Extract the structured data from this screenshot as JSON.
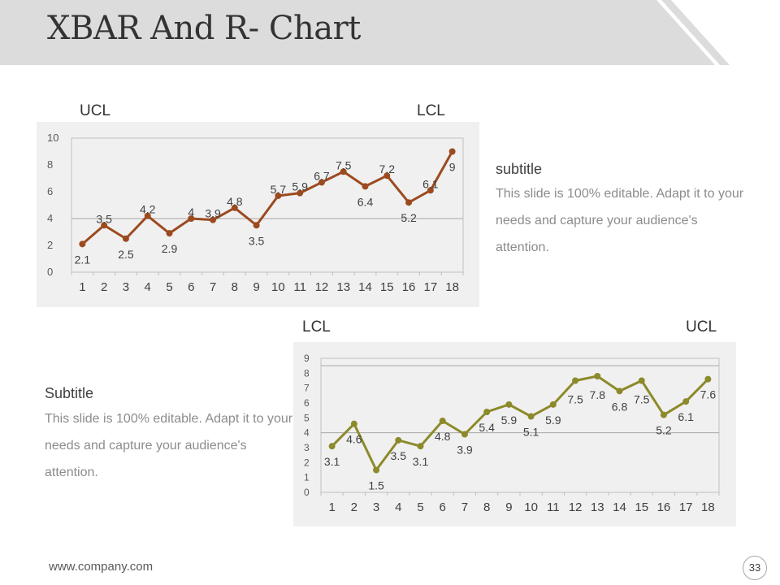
{
  "header": {
    "title": "XBAR And R- Chart"
  },
  "chart1": {
    "limit_left": "UCL",
    "limit_right": "LCL",
    "subtitle": "subtitle",
    "body": "This slide is 100% editable. Adapt it to your needs and capture your audience's attention."
  },
  "chart2": {
    "limit_left": "LCL",
    "limit_right": "UCL",
    "subtitle": "Subtitle",
    "body": "This slide is 100% editable. Adapt it to your needs and capture your audience's attention."
  },
  "footer": {
    "url": "www.company.com",
    "page": "33"
  },
  "chart_data": [
    {
      "type": "line",
      "categories": [
        "1",
        "2",
        "3",
        "4",
        "5",
        "6",
        "7",
        "8",
        "9",
        "10",
        "11",
        "12",
        "13",
        "14",
        "15",
        "16",
        "17",
        "18"
      ],
      "values": [
        2.1,
        3.5,
        2.5,
        4.2,
        2.9,
        4,
        3.9,
        4.8,
        3.5,
        5.7,
        5.9,
        6.7,
        7.5,
        6.4,
        7.2,
        5.2,
        6.1,
        9
      ],
      "labels": [
        "2.1",
        "3.5",
        "2.5",
        "4.2",
        "2.9",
        "4",
        "3.9",
        "4.8",
        "3.5",
        "5.7",
        "5.9",
        "6.7",
        "7.5",
        "6.4",
        "7.2",
        "5.2",
        "6.1",
        "9"
      ],
      "ylim": [
        0,
        10
      ],
      "yticks": [
        "0",
        "2",
        "4",
        "6",
        "8",
        "10"
      ],
      "reference_line": 4,
      "color": "#9c4a1f"
    },
    {
      "type": "line",
      "categories": [
        "1",
        "2",
        "3",
        "4",
        "5",
        "6",
        "7",
        "8",
        "9",
        "10",
        "11",
        "12",
        "13",
        "14",
        "15",
        "16",
        "17",
        "18"
      ],
      "values": [
        3.1,
        4.6,
        1.5,
        3.5,
        3.1,
        4.8,
        3.9,
        5.4,
        5.9,
        5.1,
        5.9,
        7.5,
        7.8,
        6.8,
        7.5,
        5.2,
        6.1,
        7.6
      ],
      "labels": [
        "3.1",
        "4.6",
        "1.5",
        "3.5",
        "3.1",
        "4.8",
        "3.9",
        "5.4",
        "5.9",
        "5.1",
        "5.9",
        "7.5",
        "7.8",
        "6.8",
        "7.5",
        "5.2",
        "6.1",
        "7.6"
      ],
      "ylim": [
        0,
        9
      ],
      "yticks": [
        "0",
        "1",
        "2",
        "3",
        "4",
        "5",
        "6",
        "7",
        "8",
        "9"
      ],
      "reference_lines": [
        4,
        8.5
      ],
      "color": "#8c8a2a"
    }
  ]
}
